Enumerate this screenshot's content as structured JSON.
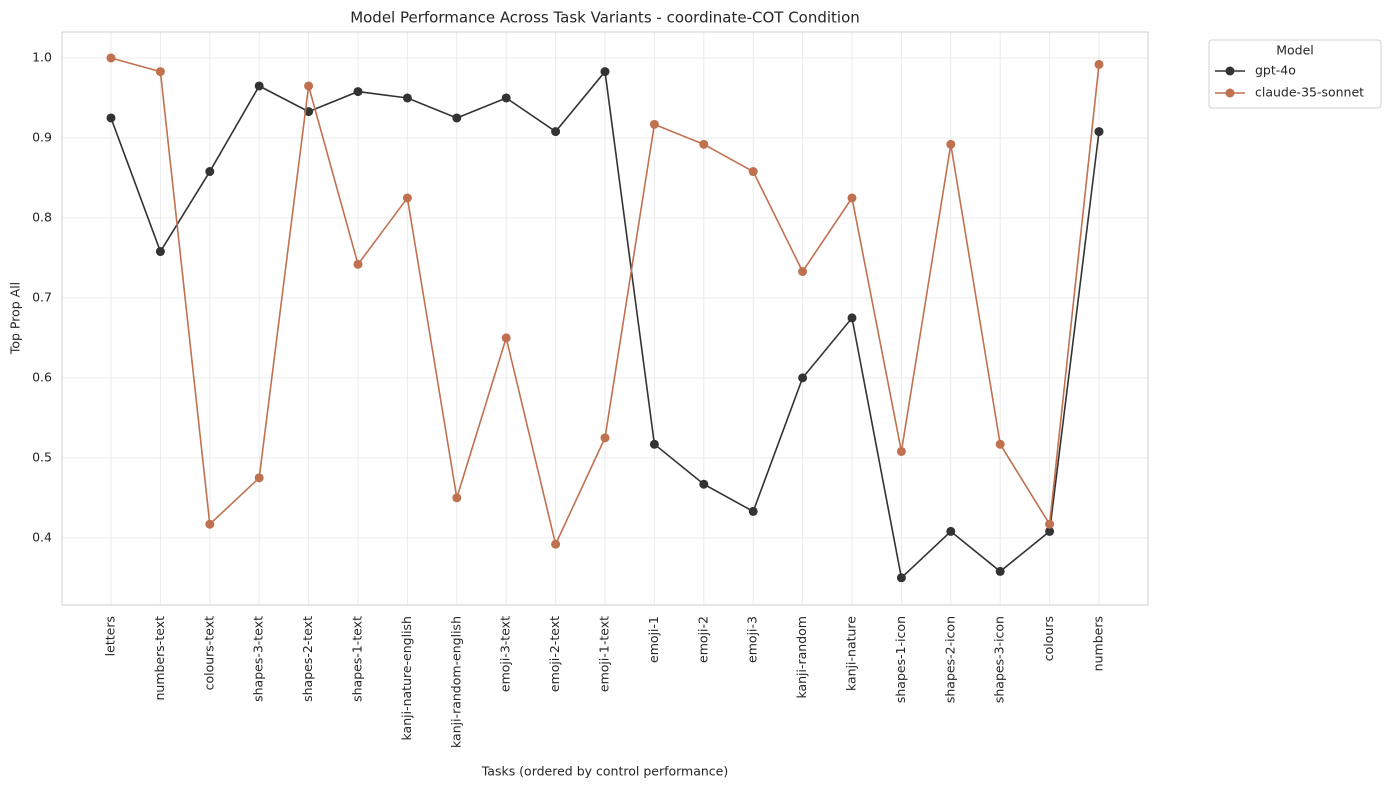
{
  "chart_data": {
    "type": "line",
    "title": "Model Performance Across Task Variants - coordinate-COT Condition",
    "x_label": "Tasks (ordered by control performance)",
    "y_label": "Top Prop All",
    "categories": [
      "letters",
      "numbers-text",
      "colours-text",
      "shapes-3-text",
      "shapes-2-text",
      "shapes-1-text",
      "kanji-nature-english",
      "kanji-random-english",
      "emoji-3-text",
      "emoji-2-text",
      "emoji-1-text",
      "emoji-1",
      "emoji-2",
      "emoji-3",
      "kanji-random",
      "kanji-nature",
      "shapes-1-icon",
      "shapes-2-icon",
      "shapes-3-icon",
      "colours",
      "numbers"
    ],
    "series": [
      {
        "name": "gpt-4o",
        "color": "#333333",
        "values": [
          0.925,
          0.758,
          0.858,
          0.965,
          0.933,
          0.958,
          0.95,
          0.925,
          0.95,
          0.908,
          0.983,
          0.517,
          0.467,
          0.433,
          0.6,
          0.675,
          0.35,
          0.408,
          0.358,
          0.408,
          0.908
        ]
      },
      {
        "name": "claude-35-sonnet",
        "color": "#c0714f",
        "values": [
          1.0,
          0.983,
          0.417,
          0.475,
          0.965,
          0.742,
          0.825,
          0.45,
          0.65,
          0.392,
          0.525,
          0.917,
          0.892,
          0.858,
          0.733,
          0.825,
          0.508,
          0.892,
          0.517,
          0.417,
          0.992
        ]
      }
    ],
    "ylim": [
      0.316,
      1.0325
    ],
    "yticks": [
      0.4,
      0.5,
      0.6,
      0.7,
      0.8,
      0.9,
      {
        "value": 1,
        "label": "1.0"
      }
    ],
    "grid": true,
    "legend_title": "Model",
    "legend_position": "outside-upper-right"
  }
}
